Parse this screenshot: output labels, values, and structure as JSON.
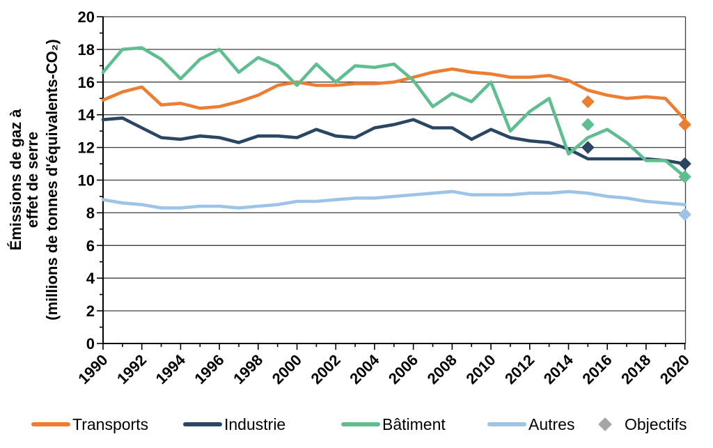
{
  "chart_data": {
    "type": "line",
    "title": "",
    "ylabel_lines": [
      "Émissions de gaz à",
      "effet de serre",
      "(millions de tonnes d'équivalents-CO₂)"
    ],
    "ylim": [
      0,
      20
    ],
    "xlim": [
      1990,
      2020
    ],
    "y_ticks": [
      0,
      2,
      4,
      6,
      8,
      10,
      12,
      14,
      16,
      18,
      20
    ],
    "y_minor_step": 1,
    "x_ticks": [
      1990,
      1992,
      1994,
      1996,
      1998,
      2000,
      2002,
      2004,
      2006,
      2008,
      2010,
      2012,
      2014,
      2016,
      2018,
      2020
    ],
    "x_minor_step": 1,
    "grid": true,
    "legend_position": "bottom",
    "x": [
      1990,
      1991,
      1992,
      1993,
      1994,
      1995,
      1996,
      1997,
      1998,
      1999,
      2000,
      2001,
      2002,
      2003,
      2004,
      2005,
      2006,
      2007,
      2008,
      2009,
      2010,
      2011,
      2012,
      2013,
      2014,
      2015,
      2016,
      2017,
      2018,
      2019,
      2020
    ],
    "series": [
      {
        "name": "Transports",
        "color": "#ED7D31",
        "values": [
          14.9,
          15.4,
          15.7,
          14.6,
          14.7,
          14.4,
          14.5,
          14.8,
          15.2,
          15.8,
          16.0,
          15.8,
          15.8,
          15.9,
          15.9,
          16.0,
          16.3,
          16.6,
          16.8,
          16.6,
          16.5,
          16.3,
          16.3,
          16.4,
          16.1,
          15.5,
          15.2,
          15.0,
          15.1,
          15.0,
          13.7
        ]
      },
      {
        "name": "Industrie",
        "color": "#2A4663",
        "values": [
          13.7,
          13.8,
          13.2,
          12.6,
          12.5,
          12.7,
          12.6,
          12.3,
          12.7,
          12.7,
          12.6,
          13.1,
          12.7,
          12.6,
          13.2,
          13.4,
          13.7,
          13.2,
          13.2,
          12.5,
          13.1,
          12.6,
          12.4,
          12.3,
          11.9,
          11.3,
          11.3,
          11.3,
          11.3,
          11.2,
          11.0
        ]
      },
      {
        "name": "Bâtiment",
        "color": "#5FBE8F",
        "values": [
          16.6,
          18.0,
          18.1,
          17.4,
          16.2,
          17.4,
          18.0,
          16.6,
          17.5,
          17.0,
          15.8,
          17.1,
          16.0,
          17.0,
          16.9,
          17.1,
          16.1,
          14.5,
          15.3,
          14.8,
          16.0,
          13.0,
          14.2,
          15.0,
          11.6,
          12.6,
          13.1,
          12.3,
          11.2,
          11.2,
          10.2
        ]
      },
      {
        "name": "Autres",
        "color": "#9DC3E6",
        "values": [
          8.8,
          8.6,
          8.5,
          8.3,
          8.3,
          8.4,
          8.4,
          8.3,
          8.4,
          8.5,
          8.7,
          8.7,
          8.8,
          8.9,
          8.9,
          9.0,
          9.1,
          9.2,
          9.3,
          9.1,
          9.1,
          9.1,
          9.2,
          9.2,
          9.3,
          9.2,
          9.0,
          8.9,
          8.7,
          8.6,
          8.5
        ]
      }
    ],
    "objectifs": {
      "name": "Objectifs",
      "legend_color": "#A6A6A6",
      "points": [
        {
          "x": 2015,
          "y": 14.8,
          "series": "Transports"
        },
        {
          "x": 2015,
          "y": 13.4,
          "series": "Bâtiment"
        },
        {
          "x": 2015,
          "y": 12.0,
          "series": "Industrie"
        },
        {
          "x": 2020,
          "y": 13.4,
          "series": "Transports"
        },
        {
          "x": 2020,
          "y": 11.0,
          "series": "Industrie"
        },
        {
          "x": 2020,
          "y": 10.2,
          "series": "Bâtiment"
        },
        {
          "x": 2020,
          "y": 7.9,
          "series": "Autres"
        }
      ]
    }
  },
  "legend": {
    "items": [
      {
        "label": "Transports",
        "color": "#ED7D31",
        "marker": "line"
      },
      {
        "label": "Industrie",
        "color": "#2A4663",
        "marker": "line"
      },
      {
        "label": "Bâtiment",
        "color": "#5FBE8F",
        "marker": "line"
      },
      {
        "label": "Autres",
        "color": "#9DC3E6",
        "marker": "line"
      },
      {
        "label": "Objectifs",
        "color": "#A6A6A6",
        "marker": "diamond"
      }
    ]
  }
}
